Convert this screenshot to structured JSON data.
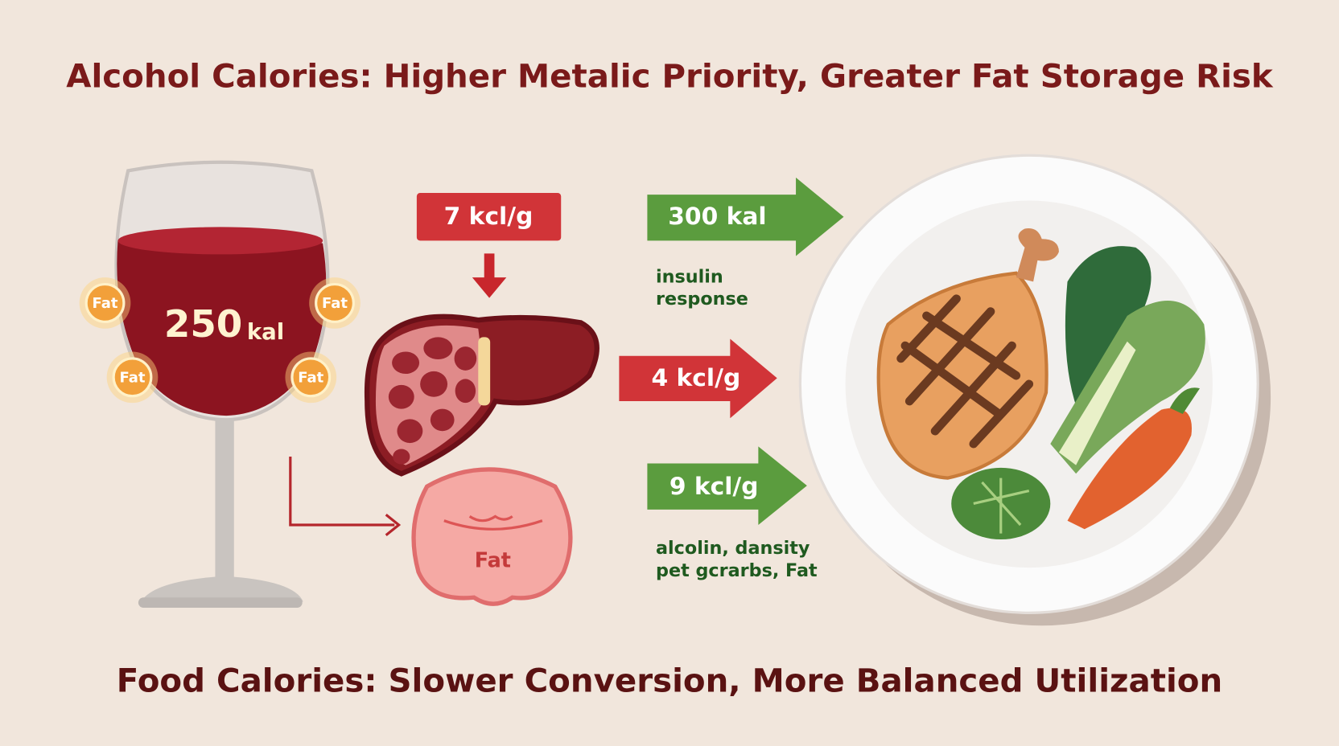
{
  "header": {
    "title": "Alcohol Calories: Higher Metalic Priority, Greater Fat Storage Risk"
  },
  "glass": {
    "amount": "250",
    "unit": "kal",
    "badges": [
      "Fat",
      "Fat",
      "Fat",
      "Fat"
    ]
  },
  "liver": {
    "label": "7 kcl/g"
  },
  "fat_tissue": {
    "label": "Fat"
  },
  "arrows": [
    {
      "label": "300 kal",
      "note": [
        "insulin",
        "response"
      ]
    },
    {
      "label": "4 kcl/g"
    },
    {
      "label": "9 kcl/g",
      "note": [
        "alcolin, dansity",
        "pet gcrarbs, Fat"
      ]
    }
  ],
  "footer": {
    "title": "Food Calories: Slower Conversion, More Balanced Utilization"
  }
}
